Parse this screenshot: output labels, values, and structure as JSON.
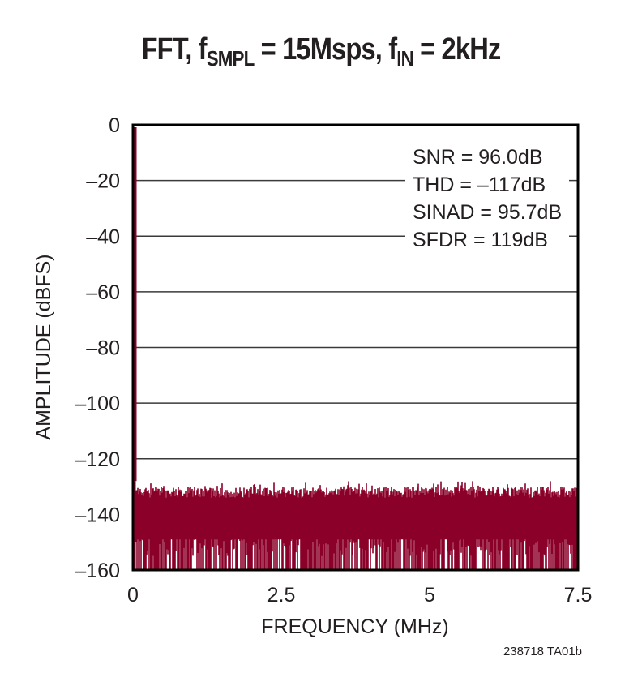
{
  "chart_data": {
    "type": "line",
    "title": "FFT, fSMPL = 15Msps, fIN = 2kHz",
    "title_parts": {
      "prefix": "FFT, f",
      "sub1": "SMPL",
      "mid": " = 15Msps, f",
      "sub2": "IN",
      "suffix": " = 2kHz"
    },
    "xlabel": "FREQUENCY (MHz)",
    "ylabel": "AMPLITUDE (dBFS)",
    "xlim": [
      0,
      7.5
    ],
    "ylim": [
      -160,
      0
    ],
    "x_ticks": [
      "0",
      "2.5",
      "5",
      "7.5"
    ],
    "y_ticks": [
      "0",
      "–20",
      "–40",
      "–60",
      "–80",
      "–100",
      "–120",
      "–140",
      "–160"
    ],
    "grid": "horizontal",
    "series": [
      {
        "name": "FFT spectrum",
        "color": "#8b0029",
        "description": "Fundamental at 2kHz reaching 0 dBFS; noise floor spans roughly -130 to -160 dBFS across 0–7.5 MHz",
        "fundamental": {
          "x": 0.002,
          "y": 0
        },
        "noise_floor_top": -132,
        "noise_floor_bottom": -160
      }
    ],
    "annotations": [
      "SNR = 96.0dB",
      "THD = –117dB",
      "SINAD = 95.7dB",
      "SFDR = 119dB"
    ],
    "figure_code": "238718 TA01b"
  },
  "colors": {
    "trace": "#8b0029",
    "axis": "#000000",
    "grid": "#3a3a3a"
  }
}
